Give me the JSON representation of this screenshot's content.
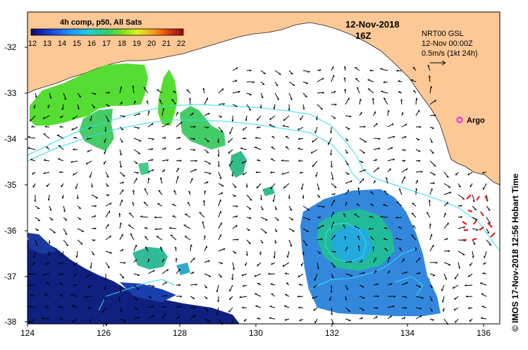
{
  "legend": {
    "title": "4h comp, p50, All Sats",
    "ticks": [
      "12",
      "13",
      "14",
      "15",
      "16",
      "17",
      "18",
      "19",
      "20",
      "21",
      "22"
    ]
  },
  "date": {
    "line1": "12-Nov-2018",
    "line2": "16Z"
  },
  "current_info": {
    "line1": "NRT00 GSL",
    "line2": "12-Nov 00:00Z",
    "line3": "0.5m/s (1kt 24h)"
  },
  "argo_label": "Argo",
  "side_credit": "© IMOS 17-Nov-2018 12:56 Hobart Time",
  "lat_labels": [
    "-32",
    "-33",
    "-34",
    "-35",
    "-36",
    "-37",
    "-38"
  ],
  "lon_labels": [
    "124",
    "126",
    "128",
    "130",
    "132",
    "134",
    "136"
  ],
  "colors": {
    "land": "#fcc896",
    "sst_green": "#55dd33",
    "sst_teal": "#22bb99",
    "sst_blue": "#3388dd",
    "sst_deep": "#102080",
    "contour": "#33ddee",
    "argo": "#ee22ee",
    "drifter": "#ee1111"
  }
}
